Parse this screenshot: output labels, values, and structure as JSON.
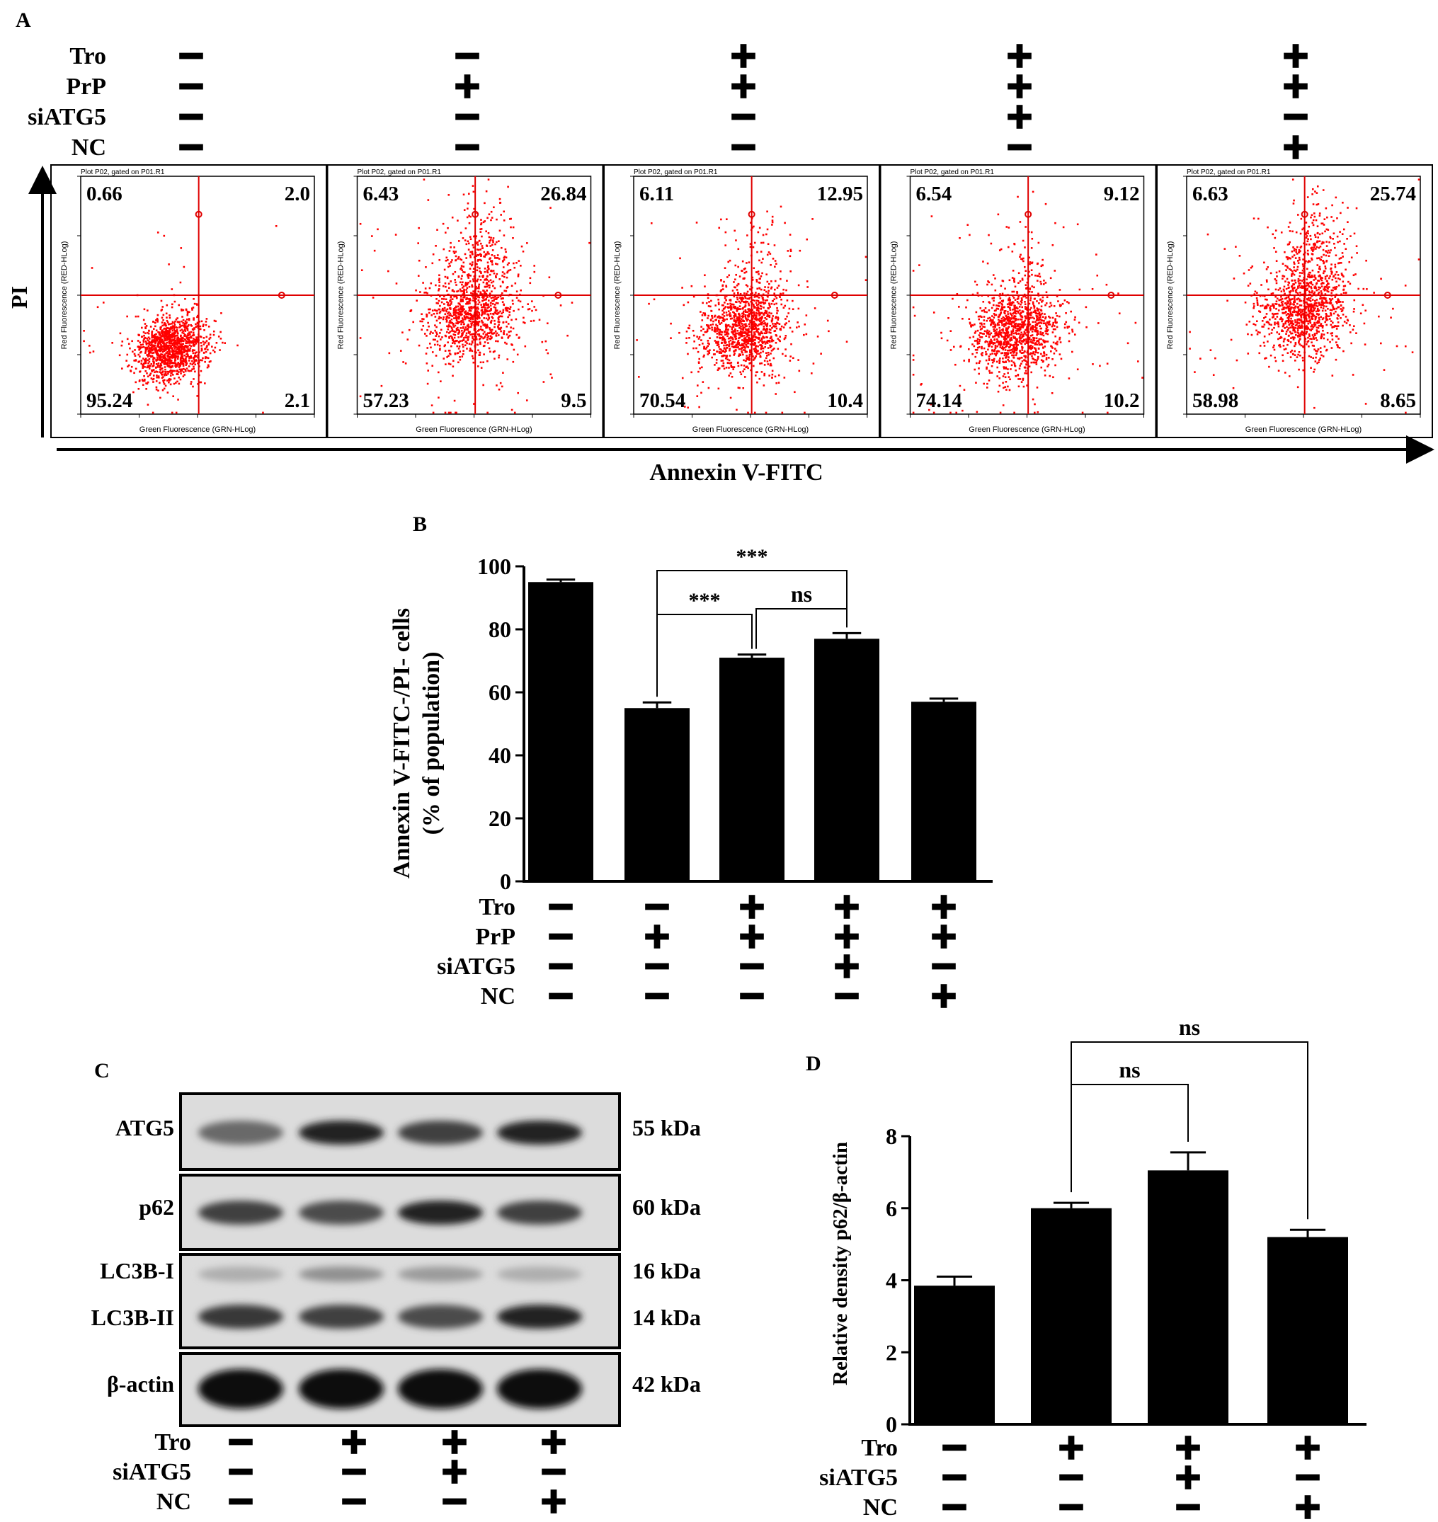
{
  "panel_labels": {
    "a": "A",
    "b": "B",
    "c": "C",
    "d": "D"
  },
  "treatments": {
    "tro": "Tro",
    "prp": "PrP",
    "siatg5": "siATG5",
    "nc": "NC",
    "plus": "+",
    "minus": "−"
  },
  "panel_a": {
    "y_axis": "PI",
    "x_axis": "Annexin V-FITC",
    "plot_header": "Plot P02, gated on P01.R1",
    "plot_xlabel": "Green Fluorescence (GRN-HLog)",
    "plot_ylabel": "Red Fluorescence (RED-HLog)",
    "design": [
      {
        "tro": "−",
        "prp": "−",
        "siatg5": "−",
        "nc": "−"
      },
      {
        "tro": "−",
        "prp": "+",
        "siatg5": "−",
        "nc": "−"
      },
      {
        "tro": "+",
        "prp": "+",
        "siatg5": "−",
        "nc": "−"
      },
      {
        "tro": "+",
        "prp": "+",
        "siatg5": "+",
        "nc": "−"
      },
      {
        "tro": "+",
        "prp": "+",
        "siatg5": "−",
        "nc": "+"
      }
    ],
    "plots": [
      {
        "ul": "0.66",
        "ur": "2.0",
        "ll": "95.24",
        "lr": "2.1"
      },
      {
        "ul": "6.43",
        "ur": "26.84",
        "ll": "57.23",
        "lr": "9.5"
      },
      {
        "ul": "6.11",
        "ur": "12.95",
        "ll": "70.54",
        "lr": "10.4"
      },
      {
        "ul": "6.54",
        "ur": "9.12",
        "ll": "74.14",
        "lr": "10.2"
      },
      {
        "ul": "6.63",
        "ur": "25.74",
        "ll": "58.98",
        "lr": "8.65"
      }
    ],
    "point_color": "#ff0000",
    "gate_color": "#e00000"
  },
  "chart_data": [
    {
      "id": "B",
      "type": "bar",
      "ylabel_line1": "Annexin V-FITC-/PI- cells",
      "ylabel_line2": "(% of population)",
      "ylim": [
        0,
        100
      ],
      "yticks": [
        "0",
        "20",
        "40",
        "60",
        "80",
        "100"
      ],
      "values": [
        95,
        55,
        71,
        77,
        57
      ],
      "errors": [
        0.8,
        1.8,
        1.0,
        1.8,
        1.0
      ],
      "design": [
        {
          "tro": "−",
          "prp": "−",
          "siatg5": "−",
          "nc": "−"
        },
        {
          "tro": "−",
          "prp": "+",
          "siatg5": "−",
          "nc": "−"
        },
        {
          "tro": "+",
          "prp": "+",
          "siatg5": "−",
          "nc": "−"
        },
        {
          "tro": "+",
          "prp": "+",
          "siatg5": "+",
          "nc": "−"
        },
        {
          "tro": "+",
          "prp": "+",
          "siatg5": "−",
          "nc": "+"
        }
      ],
      "annotations": [
        "***",
        "ns",
        "***"
      ],
      "bar_color": "#000000"
    },
    {
      "id": "D",
      "type": "bar",
      "ylabel": "Relative density p62/β-actin",
      "ylim": [
        0,
        8
      ],
      "yticks": [
        "0",
        "2",
        "4",
        "6",
        "8"
      ],
      "values": [
        3.85,
        6.0,
        7.05,
        5.2
      ],
      "errors": [
        0.25,
        0.15,
        0.5,
        0.2
      ],
      "design": [
        {
          "tro": "−",
          "siatg5": "−",
          "nc": "−"
        },
        {
          "tro": "+",
          "siatg5": "−",
          "nc": "−"
        },
        {
          "tro": "+",
          "siatg5": "+",
          "nc": "−"
        },
        {
          "tro": "+",
          "siatg5": "−",
          "nc": "+"
        }
      ],
      "annotations": [
        "ns",
        "ns"
      ],
      "bar_color": "#000000"
    }
  ],
  "panel_c": {
    "bands": [
      {
        "label": "ATG5",
        "kda": "55 kDa",
        "intensity": [
          0.55,
          0.9,
          0.75,
          0.9
        ]
      },
      {
        "label": "p62",
        "kda": "60 kDa",
        "intensity": [
          0.75,
          0.7,
          0.9,
          0.75
        ]
      },
      {
        "label": "LC3B-I",
        "kda": "16 kDa",
        "intensity": [
          0.2,
          0.35,
          0.3,
          0.2
        ]
      },
      {
        "label": "LC3B-II",
        "kda": "14 kDa",
        "intensity": [
          0.8,
          0.75,
          0.7,
          0.9
        ]
      },
      {
        "label": "β-actin",
        "kda": "42 kDa",
        "intensity": [
          1.0,
          1.0,
          1.0,
          1.0
        ]
      }
    ],
    "design": [
      {
        "tro": "−",
        "siatg5": "−",
        "nc": "−"
      },
      {
        "tro": "+",
        "siatg5": "−",
        "nc": "−"
      },
      {
        "tro": "+",
        "siatg5": "+",
        "nc": "−"
      },
      {
        "tro": "+",
        "siatg5": "−",
        "nc": "+"
      }
    ]
  }
}
